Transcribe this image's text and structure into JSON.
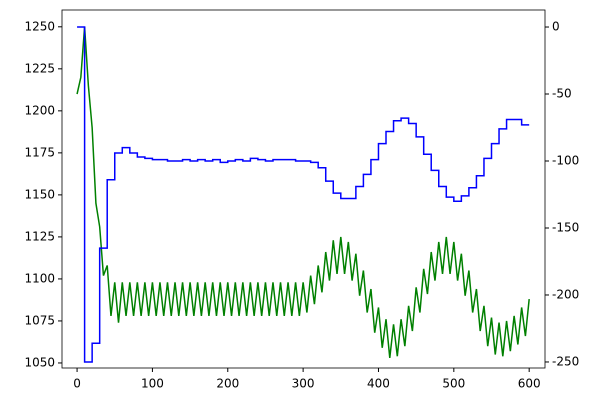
{
  "chart_data": {
    "type": "line",
    "xlim": [
      -20,
      621
    ],
    "xticks": [
      0,
      100,
      200,
      300,
      400,
      500,
      600
    ],
    "ylim": [
      1047,
      1260
    ],
    "yticks": [
      1050,
      1075,
      1100,
      1125,
      1150,
      1175,
      1200,
      1225,
      1250
    ],
    "y2lim": [
      -254.5,
      12.7
    ],
    "y2ticks": [
      0,
      -50,
      -100,
      -150,
      -200,
      -250
    ],
    "series": [
      {
        "color": "#008000",
        "step": false,
        "x": [
          0,
          5,
          10,
          15,
          20,
          25,
          30,
          35,
          40,
          45,
          50,
          55,
          60,
          65,
          70,
          75,
          80,
          85,
          90,
          95,
          100,
          105,
          110,
          115,
          120,
          125,
          130,
          135,
          140,
          145,
          150,
          155,
          160,
          165,
          170,
          175,
          180,
          185,
          190,
          195,
          200,
          205,
          210,
          215,
          220,
          225,
          230,
          235,
          240,
          245,
          250,
          255,
          260,
          265,
          270,
          275,
          280,
          285,
          290,
          295,
          300,
          305,
          310,
          315,
          320,
          325,
          330,
          335,
          340,
          345,
          350,
          355,
          360,
          365,
          370,
          375,
          380,
          385,
          390,
          395,
          400,
          405,
          410,
          415,
          420,
          425,
          430,
          435,
          440,
          445,
          450,
          455,
          460,
          465,
          470,
          475,
          480,
          485,
          490,
          495,
          500,
          505,
          510,
          515,
          520,
          525,
          530,
          535,
          540,
          545,
          550,
          555,
          560,
          565,
          570,
          575,
          580,
          585,
          590,
          595,
          600
        ],
        "values": [
          1210,
          1220,
          1250,
          1215,
          1190,
          1145,
          1131,
          1102,
          1108,
          1078,
          1098,
          1074,
          1098,
          1078,
          1098,
          1078,
          1098,
          1078,
          1098,
          1078,
          1098,
          1078,
          1098,
          1078,
          1098,
          1078,
          1098,
          1078,
          1098,
          1078,
          1098,
          1078,
          1098,
          1078,
          1098,
          1078,
          1098,
          1078,
          1098,
          1078,
          1098,
          1078,
          1098,
          1078,
          1098,
          1078,
          1098,
          1078,
          1098,
          1078,
          1098,
          1078,
          1098,
          1078,
          1098,
          1078,
          1098,
          1078,
          1098,
          1078,
          1098,
          1080,
          1102,
          1085,
          1108,
          1092,
          1116,
          1099,
          1123,
          1103,
          1125,
          1103,
          1122,
          1099,
          1115,
          1090,
          1105,
          1080,
          1094,
          1068,
          1083,
          1059,
          1076,
          1053,
          1073,
          1054,
          1076,
          1060,
          1084,
          1069,
          1095,
          1080,
          1106,
          1091,
          1116,
          1099,
          1122,
          1103,
          1125,
          1103,
          1122,
          1099,
          1115,
          1090,
          1105,
          1080,
          1094,
          1069,
          1084,
          1060,
          1077,
          1055,
          1074,
          1054,
          1075,
          1057,
          1078,
          1061,
          1083,
          1066,
          1088
        ]
      },
      {
        "color": "#0000ff",
        "axis": "y2",
        "step": true,
        "x": [
          0,
          10,
          20,
          30,
          40,
          50,
          60,
          70,
          80,
          90,
          100,
          110,
          120,
          130,
          140,
          150,
          160,
          170,
          180,
          190,
          200,
          210,
          220,
          230,
          240,
          250,
          260,
          270,
          280,
          290,
          300,
          310,
          320,
          330,
          340,
          350,
          360,
          370,
          380,
          390,
          400,
          410,
          420,
          430,
          440,
          450,
          460,
          470,
          480,
          490,
          500,
          510,
          520,
          530,
          540,
          550,
          560,
          570,
          580,
          590,
          600
        ],
        "values": [
          0,
          -250,
          -236,
          -165,
          -114,
          -94,
          -90,
          -94,
          -97,
          -98,
          -99,
          -99,
          -100,
          -100,
          -99,
          -100,
          -99,
          -100,
          -99,
          -101,
          -100,
          -99,
          -100,
          -98,
          -99,
          -100,
          -99,
          -99,
          -99,
          -100,
          -100,
          -101,
          -105,
          -115,
          -124,
          -128,
          -128,
          -119,
          -110,
          -99,
          -87,
          -78,
          -70,
          -68,
          -72,
          -82,
          -95,
          -107,
          -119,
          -127,
          -130,
          -126,
          -120,
          -111,
          -98,
          -87,
          -76,
          -69,
          -69,
          -73,
          -73
        ]
      }
    ]
  }
}
